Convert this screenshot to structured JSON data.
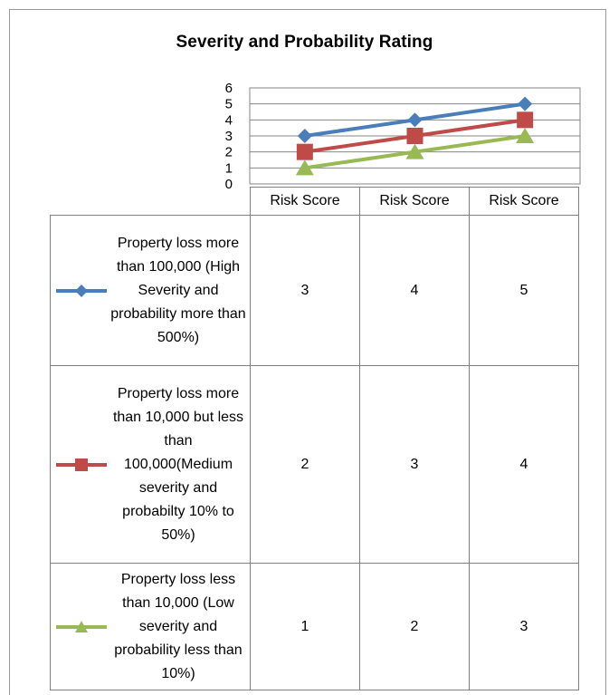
{
  "chart_data": {
    "type": "line",
    "title": "Severity and Probability Rating",
    "categories": [
      "Risk Score",
      "Risk Score",
      "Risk Score"
    ],
    "ylim": [
      0,
      6
    ],
    "yticks": [
      "0",
      "1",
      "2",
      "3",
      "4",
      "5",
      "6"
    ],
    "grid": true,
    "legend": "data-table",
    "series": [
      {
        "name": "Property loss more than 100,000 (High Severity and probability more than 500%)",
        "values": [
          3,
          4,
          5
        ],
        "color": "#4a7ebb",
        "marker": "diamond"
      },
      {
        "name": "Property loss more than 10,000 but less than 100,000(Medium severity and probabilty 10% to 50%)",
        "values": [
          2,
          3,
          4
        ],
        "color": "#be4b48",
        "marker": "square"
      },
      {
        "name": "Property loss less than 10,000 (Low severity and probability less than 10%)",
        "values": [
          1,
          2,
          3
        ],
        "color": "#98b954",
        "marker": "triangle"
      }
    ]
  }
}
